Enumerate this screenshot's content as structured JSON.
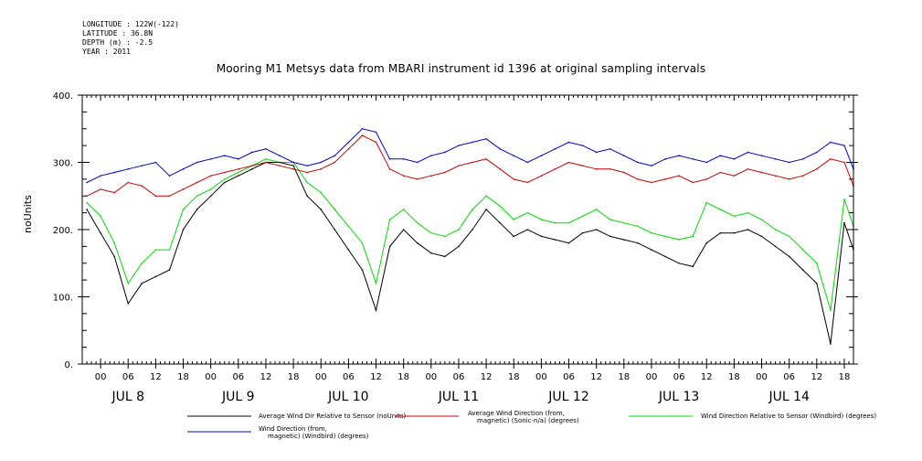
{
  "meta": {
    "longitude": "LONGITUDE : 122W(-122)",
    "latitude": "LATITUDE : 36.8N",
    "depth": "DEPTH (m) : -2.5",
    "year": "YEAR : 2011"
  },
  "chart_data": {
    "type": "line",
    "title": "Mooring M1 Metsys data from MBARI instrument id 1396 at original sampling intervals",
    "xlabel": "",
    "ylabel": "noUnits",
    "ylim": [
      0,
      400
    ],
    "y_ticks": [
      0,
      100,
      200,
      300,
      400
    ],
    "y_tick_labels": [
      "0.",
      "100.",
      "200.",
      "300.",
      "400."
    ],
    "x_range_hours": [
      -4,
      164
    ],
    "hour_tick_labels": [
      "00",
      "06",
      "12",
      "18"
    ],
    "days": [
      "JUL 8",
      "JUL 9",
      "JUL 10",
      "JUL 11",
      "JUL 12",
      "JUL 13",
      "JUL 14"
    ],
    "grid": false,
    "legend_position": "bottom",
    "series": [
      {
        "name": "Average Wind Dir Relative to Sensor (noUnits)",
        "color": "#000000",
        "x": [
          -3,
          0,
          3,
          6,
          9,
          12,
          15,
          18,
          21,
          24,
          27,
          30,
          33,
          36,
          39,
          42,
          45,
          48,
          51,
          54,
          57,
          60,
          63,
          66,
          69,
          72,
          75,
          78,
          81,
          84,
          87,
          90,
          93,
          96,
          99,
          102,
          105,
          108,
          111,
          114,
          117,
          120,
          123,
          126,
          129,
          132,
          135,
          138,
          141,
          144,
          147,
          150,
          153,
          156,
          159,
          162,
          164
        ],
        "y": [
          230,
          195,
          160,
          90,
          120,
          130,
          140,
          200,
          230,
          250,
          270,
          280,
          290,
          300,
          300,
          295,
          250,
          230,
          200,
          170,
          140,
          80,
          175,
          200,
          180,
          165,
          160,
          175,
          200,
          230,
          210,
          190,
          200,
          190,
          185,
          180,
          195,
          200,
          190,
          185,
          180,
          170,
          160,
          150,
          145,
          180,
          195,
          195,
          200,
          190,
          175,
          160,
          140,
          120,
          30,
          210,
          170
        ]
      },
      {
        "name": "Average Wind Direction (from, magnetic) (Sonic-n/a) (degrees)",
        "color": "#cc0000",
        "x": [
          -3,
          0,
          3,
          6,
          9,
          12,
          15,
          18,
          21,
          24,
          27,
          30,
          33,
          36,
          39,
          42,
          45,
          48,
          51,
          54,
          57,
          60,
          63,
          66,
          69,
          72,
          75,
          78,
          81,
          84,
          87,
          90,
          93,
          96,
          99,
          102,
          105,
          108,
          111,
          114,
          117,
          120,
          123,
          126,
          129,
          132,
          135,
          138,
          141,
          144,
          147,
          150,
          153,
          156,
          159,
          162,
          164
        ],
        "y": [
          250,
          260,
          255,
          270,
          265,
          250,
          250,
          260,
          270,
          280,
          285,
          290,
          295,
          300,
          295,
          290,
          285,
          290,
          300,
          320,
          340,
          330,
          290,
          280,
          275,
          280,
          285,
          295,
          300,
          305,
          290,
          275,
          270,
          280,
          290,
          300,
          295,
          290,
          290,
          285,
          275,
          270,
          275,
          280,
          270,
          275,
          285,
          280,
          290,
          285,
          280,
          275,
          280,
          290,
          305,
          300,
          265
        ]
      },
      {
        "name": "Wind Direction Relative to Sensor (Windbird) (degrees)",
        "color": "#00dd00",
        "x": [
          -3,
          0,
          3,
          6,
          9,
          12,
          15,
          18,
          21,
          24,
          27,
          30,
          33,
          36,
          39,
          42,
          45,
          48,
          51,
          54,
          57,
          60,
          63,
          66,
          69,
          72,
          75,
          78,
          81,
          84,
          87,
          90,
          93,
          96,
          99,
          102,
          105,
          108,
          111,
          114,
          117,
          120,
          123,
          126,
          129,
          132,
          135,
          138,
          141,
          144,
          147,
          150,
          153,
          156,
          159,
          162,
          164
        ],
        "y": [
          240,
          220,
          180,
          120,
          150,
          170,
          170,
          230,
          250,
          260,
          275,
          285,
          295,
          305,
          300,
          300,
          270,
          255,
          230,
          205,
          180,
          120,
          215,
          230,
          210,
          195,
          190,
          200,
          230,
          250,
          235,
          215,
          225,
          215,
          210,
          210,
          220,
          230,
          215,
          210,
          205,
          195,
          190,
          185,
          190,
          240,
          230,
          220,
          225,
          215,
          200,
          190,
          170,
          150,
          80,
          245,
          205
        ]
      },
      {
        "name": "Wind Direction (from, magnetic) (Windbird) (degrees)",
        "color": "#0000cc",
        "x": [
          -3,
          0,
          3,
          6,
          9,
          12,
          15,
          18,
          21,
          24,
          27,
          30,
          33,
          36,
          39,
          42,
          45,
          48,
          51,
          54,
          57,
          60,
          63,
          66,
          69,
          72,
          75,
          78,
          81,
          84,
          87,
          90,
          93,
          96,
          99,
          102,
          105,
          108,
          111,
          114,
          117,
          120,
          123,
          126,
          129,
          132,
          135,
          138,
          141,
          144,
          147,
          150,
          153,
          156,
          159,
          162,
          164
        ],
        "y": [
          270,
          280,
          285,
          290,
          295,
          300,
          280,
          290,
          300,
          305,
          310,
          305,
          315,
          320,
          310,
          300,
          295,
          300,
          310,
          330,
          350,
          345,
          305,
          305,
          300,
          310,
          315,
          325,
          330,
          335,
          320,
          310,
          300,
          310,
          320,
          330,
          325,
          315,
          320,
          310,
          300,
          295,
          305,
          310,
          305,
          300,
          310,
          305,
          315,
          310,
          305,
          300,
          305,
          315,
          330,
          325,
          290
        ]
      }
    ]
  }
}
